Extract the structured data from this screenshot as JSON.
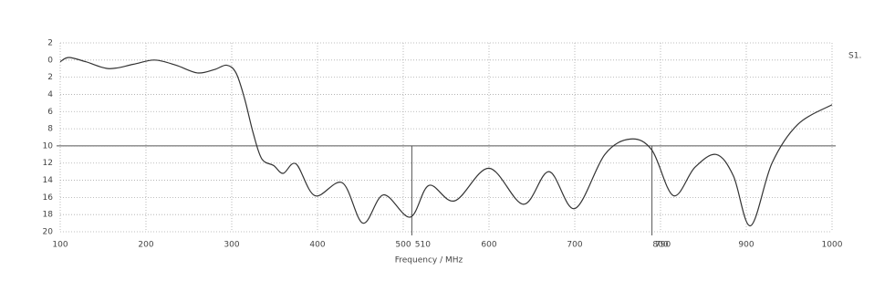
{
  "chart_data": {
    "type": "line",
    "x_label": "Frequency / MHz",
    "x": [
      100,
      110,
      130,
      157,
      185,
      210,
      235,
      260,
      280,
      294,
      305,
      315,
      325,
      335,
      349,
      360,
      375,
      397,
      429,
      453,
      477,
      508,
      530,
      560,
      600,
      640,
      670,
      700,
      735,
      765,
      790,
      815,
      840,
      865,
      885,
      905,
      930,
      960,
      1000
    ],
    "series": [
      {
        "name": "S1.",
        "color": "#333333",
        "values": [
          -0.2,
          0.3,
          -0.2,
          -1.0,
          -0.5,
          0,
          -0.6,
          -1.5,
          -1.1,
          -0.6,
          -1.5,
          -4.5,
          -8.5,
          -11.5,
          -12.3,
          -13.2,
          -12.1,
          -15.8,
          -14.3,
          -19,
          -15.7,
          -18.3,
          -14.6,
          -16.4,
          -12.6,
          -16.8,
          -13,
          -17.3,
          -11,
          -9.2,
          -10.5,
          -15.8,
          -12.5,
          -11,
          -13.5,
          -19.3,
          -12,
          -7.5,
          -5.2
        ]
      }
    ],
    "xlim": [
      100,
      1000
    ],
    "ylim": [
      -20,
      2
    ],
    "xticks": [
      100,
      200,
      300,
      400,
      500,
      600,
      700,
      800,
      900,
      1000
    ],
    "yticks": [
      2,
      0,
      {
        "value": -2,
        "label": "2"
      },
      {
        "value": -4,
        "label": "4"
      },
      {
        "value": -6,
        "label": "6"
      },
      {
        "value": -8,
        "label": "8"
      },
      {
        "value": -10,
        "label": "10"
      },
      {
        "value": -12,
        "label": "12"
      },
      {
        "value": -14,
        "label": "14"
      },
      {
        "value": -16,
        "label": "16"
      },
      {
        "value": -18,
        "label": "18"
      },
      {
        "value": -20,
        "label": "20"
      }
    ],
    "marker_lines": [
      510,
      790
    ],
    "reference_line": -10,
    "grid": true
  }
}
